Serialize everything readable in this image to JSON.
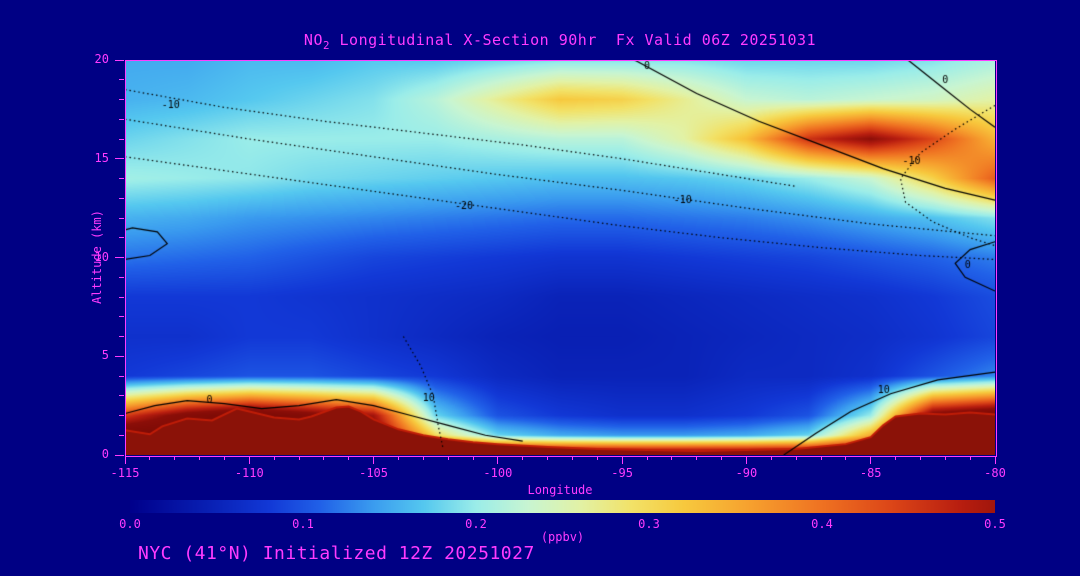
{
  "title": {
    "no2_prefix": "NO",
    "no2_sub": "2",
    "rest": " Longitudinal X-Section 90hr  Fx Valid 06Z 20251031"
  },
  "footer": "NYC (41°N) Initialized 12Z 20251027",
  "axes": {
    "x": {
      "label": "Longitude",
      "min": -115,
      "max": -80,
      "major_ticks": [
        -115,
        -110,
        -105,
        -100,
        -95,
        -90,
        -85,
        -80
      ],
      "minor_step": 1
    },
    "y": {
      "label": "Altitude (km)",
      "min": 0,
      "max": 20,
      "major_ticks": [
        0,
        5,
        10,
        15,
        20
      ],
      "minor_step": 1
    }
  },
  "colorbar": {
    "label": "(ppbv)",
    "min": 0,
    "max": 0.5,
    "ticks": [
      0,
      0.1,
      0.2,
      0.3,
      0.4,
      0.5
    ]
  },
  "colors": {
    "background": "#000084",
    "text": "#ff3bff",
    "contour": "#000000",
    "surface_fill": "#8b1208",
    "surface_edge": "#c01d08"
  },
  "colormap": [
    [
      0.0,
      "#00008b"
    ],
    [
      0.05,
      "#0a23b8"
    ],
    [
      0.08,
      "#1238d6"
    ],
    [
      0.11,
      "#2161e8"
    ],
    [
      0.14,
      "#3a9bef"
    ],
    [
      0.17,
      "#55c8ef"
    ],
    [
      0.2,
      "#9bede9"
    ],
    [
      0.23,
      "#c8f5d2"
    ],
    [
      0.26,
      "#e2f2a6"
    ],
    [
      0.29,
      "#f2e268"
    ],
    [
      0.32,
      "#f7c93e"
    ],
    [
      0.36,
      "#f69f2e"
    ],
    [
      0.4,
      "#ef7222"
    ],
    [
      0.44,
      "#dc4618"
    ],
    [
      0.48,
      "#b81e10"
    ],
    [
      0.52,
      "#8b0e08"
    ],
    [
      0.6,
      "#7a0a05"
    ]
  ],
  "chart_data": {
    "type": "heatmap",
    "title": "NO2 Longitudinal X-Section 90hr  Fx Valid 06Z 20251031",
    "xlabel": "Longitude",
    "ylabel": "Altitude (km)",
    "units": "ppbv",
    "xlim": [
      -115,
      -80
    ],
    "ylim": [
      0,
      20
    ],
    "value_range": [
      0,
      0.5
    ],
    "x": [
      -115,
      -112.5,
      -110,
      -107.5,
      -105,
      -102.5,
      -100,
      -97.5,
      -95,
      -92.5,
      -90,
      -87.5,
      -85,
      -82.5,
      -80
    ],
    "y": [
      0,
      1,
      2,
      4,
      6,
      8,
      10,
      12,
      14,
      16,
      18,
      20
    ],
    "values": [
      [
        0.6,
        0.6,
        0.6,
        0.6,
        0.6,
        0.6,
        0.6,
        0.6,
        0.6,
        0.6,
        0.6,
        0.6,
        0.6,
        0.6,
        0.6
      ],
      [
        0.6,
        0.6,
        0.6,
        0.6,
        0.55,
        0.3,
        0.18,
        0.15,
        0.14,
        0.14,
        0.15,
        0.18,
        0.35,
        0.6,
        0.6
      ],
      [
        0.45,
        0.55,
        0.6,
        0.55,
        0.5,
        0.18,
        0.1,
        0.08,
        0.07,
        0.07,
        0.08,
        0.1,
        0.2,
        0.55,
        0.6
      ],
      [
        0.08,
        0.09,
        0.1,
        0.1,
        0.09,
        0.08,
        0.06,
        0.05,
        0.05,
        0.05,
        0.06,
        0.06,
        0.07,
        0.1,
        0.13
      ],
      [
        0.07,
        0.07,
        0.08,
        0.08,
        0.07,
        0.06,
        0.05,
        0.045,
        0.045,
        0.05,
        0.055,
        0.06,
        0.065,
        0.075,
        0.09
      ],
      [
        0.08,
        0.08,
        0.08,
        0.075,
        0.07,
        0.065,
        0.06,
        0.05,
        0.05,
        0.055,
        0.06,
        0.065,
        0.07,
        0.08,
        0.095
      ],
      [
        0.12,
        0.115,
        0.11,
        0.1,
        0.09,
        0.085,
        0.08,
        0.075,
        0.075,
        0.08,
        0.085,
        0.09,
        0.1,
        0.11,
        0.125
      ],
      [
        0.155,
        0.15,
        0.14,
        0.135,
        0.13,
        0.125,
        0.12,
        0.115,
        0.115,
        0.12,
        0.125,
        0.135,
        0.15,
        0.165,
        0.19
      ],
      [
        0.205,
        0.2,
        0.195,
        0.185,
        0.18,
        0.175,
        0.17,
        0.165,
        0.165,
        0.17,
        0.18,
        0.2,
        0.23,
        0.31,
        0.42
      ],
      [
        0.18,
        0.19,
        0.2,
        0.2,
        0.2,
        0.2,
        0.21,
        0.22,
        0.22,
        0.26,
        0.33,
        0.46,
        0.52,
        0.44,
        0.34
      ],
      [
        0.155,
        0.16,
        0.17,
        0.18,
        0.19,
        0.22,
        0.27,
        0.32,
        0.31,
        0.27,
        0.23,
        0.22,
        0.23,
        0.24,
        0.26
      ],
      [
        0.15,
        0.15,
        0.16,
        0.16,
        0.17,
        0.17,
        0.18,
        0.19,
        0.19,
        0.19,
        0.18,
        0.18,
        0.18,
        0.19,
        0.21
      ]
    ],
    "surface_layer": {
      "x": [
        -115,
        -114,
        -113.5,
        -112.5,
        -111.5,
        -110.5,
        -110,
        -109,
        -108,
        -107.5,
        -106.5,
        -106,
        -105.5,
        -105,
        -104,
        -103,
        -102,
        -101,
        -100,
        -98,
        -96,
        -94,
        -92,
        -90,
        -88,
        -86,
        -85,
        -84.5,
        -84,
        -83,
        -82,
        -81,
        -80
      ],
      "top_km": [
        1.25,
        1.05,
        1.45,
        1.85,
        1.75,
        2.35,
        2.2,
        1.9,
        1.8,
        1.95,
        2.4,
        2.45,
        2.2,
        1.8,
        1.3,
        1.0,
        0.8,
        0.65,
        0.55,
        0.4,
        0.3,
        0.25,
        0.2,
        0.25,
        0.3,
        0.55,
        0.9,
        1.5,
        1.95,
        2.1,
        2.05,
        2.15,
        2.05
      ]
    },
    "contours": [
      {
        "label": "-10",
        "style": "dotted",
        "label_pos": [
          -113.2,
          17.7
        ],
        "path": [
          [
            -115,
            18.5
          ],
          [
            -111,
            17.6
          ],
          [
            -107,
            16.9
          ],
          [
            -103,
            16.3
          ],
          [
            -99,
            15.7
          ],
          [
            -95,
            15.0
          ],
          [
            -91,
            14.2
          ],
          [
            -88,
            13.6
          ]
        ]
      },
      {
        "label": "-10",
        "style": "dotted",
        "label_pos": [
          -92.6,
          12.9
        ],
        "path": [
          [
            -115,
            17.0
          ],
          [
            -110,
            16.0
          ],
          [
            -105,
            15.1
          ],
          [
            -100,
            14.2
          ],
          [
            -95,
            13.4
          ],
          [
            -90,
            12.5
          ],
          [
            -85,
            11.7
          ],
          [
            -80,
            11.1
          ]
        ]
      },
      {
        "label": "-20",
        "style": "dotted",
        "label_pos": [
          -101.4,
          12.6
        ],
        "path": [
          [
            -115,
            15.1
          ],
          [
            -111,
            14.4
          ],
          [
            -107,
            13.7
          ],
          [
            -103,
            13.0
          ],
          [
            -99,
            12.3
          ],
          [
            -95,
            11.6
          ],
          [
            -91,
            11.0
          ],
          [
            -87,
            10.5
          ],
          [
            -83,
            10.1
          ],
          [
            -80,
            9.9
          ]
        ]
      },
      {
        "label": "0",
        "style": "solid",
        "label_pos": [
          -93.8,
          19.7
        ],
        "path": [
          [
            -94.5,
            20
          ],
          [
            -92,
            18.3
          ],
          [
            -89.5,
            16.9
          ],
          [
            -87,
            15.7
          ],
          [
            -84.5,
            14.5
          ],
          [
            -82,
            13.5
          ],
          [
            -80,
            12.9
          ]
        ]
      },
      {
        "label": "-10",
        "style": "dotted",
        "label_pos": [
          -83.4,
          14.9
        ],
        "path": [
          [
            -80,
            17.7
          ],
          [
            -81.6,
            16.5
          ],
          [
            -83,
            15.3
          ],
          [
            -83.8,
            14.0
          ],
          [
            -83.6,
            12.8
          ],
          [
            -82.5,
            11.8
          ],
          [
            -81,
            11.0
          ],
          [
            -80,
            10.6
          ]
        ]
      },
      {
        "label": "0",
        "style": "solid",
        "label_pos": [
          -81.8,
          19.0
        ],
        "path": [
          [
            -83.5,
            20
          ],
          [
            -82.2,
            18.7
          ],
          [
            -81,
            17.5
          ],
          [
            -80,
            16.6
          ]
        ]
      },
      {
        "label": "0",
        "style": "solid",
        "label_pos": [
          -80.9,
          9.6
        ],
        "path": [
          [
            -80,
            8.3
          ],
          [
            -81.2,
            9.0
          ],
          [
            -81.6,
            9.7
          ],
          [
            -81,
            10.4
          ],
          [
            -80,
            10.8
          ]
        ]
      },
      {
        "label": "10",
        "style": "solid",
        "label_pos": [
          -84.4,
          3.3
        ],
        "path": [
          [
            -88.5,
            0
          ],
          [
            -87.2,
            1.1
          ],
          [
            -85.8,
            2.2
          ],
          [
            -84.2,
            3.1
          ],
          [
            -82.3,
            3.8
          ],
          [
            -80,
            4.2
          ]
        ]
      },
      {
        "label": "0",
        "style": "solid",
        "label_pos": [
          -111.4,
          2.8
        ],
        "path": [
          [
            -115,
            2.1
          ],
          [
            -113.8,
            2.5
          ],
          [
            -112.5,
            2.75
          ],
          [
            -111,
            2.6
          ],
          [
            -109.5,
            2.35
          ],
          [
            -108,
            2.5
          ],
          [
            -106.5,
            2.8
          ],
          [
            -105,
            2.5
          ],
          [
            -103.5,
            2.0
          ],
          [
            -102,
            1.5
          ],
          [
            -100.5,
            1.0
          ],
          [
            -99,
            0.7
          ]
        ]
      },
      {
        "label": "10",
        "style": "dotted",
        "label_pos": [
          -102.7,
          2.9
        ],
        "path": [
          [
            -103.8,
            6.0
          ],
          [
            -103.1,
            4.5
          ],
          [
            -102.6,
            3.0
          ],
          [
            -102.4,
            1.5
          ],
          [
            -102.2,
            0.3
          ]
        ]
      },
      {
        "label": "",
        "style": "solid",
        "label_pos": null,
        "path": [
          [
            -115,
            9.9
          ],
          [
            -114,
            10.1
          ],
          [
            -113.3,
            10.7
          ],
          [
            -113.7,
            11.3
          ],
          [
            -114.7,
            11.5
          ],
          [
            -115,
            11.4
          ]
        ]
      }
    ]
  }
}
